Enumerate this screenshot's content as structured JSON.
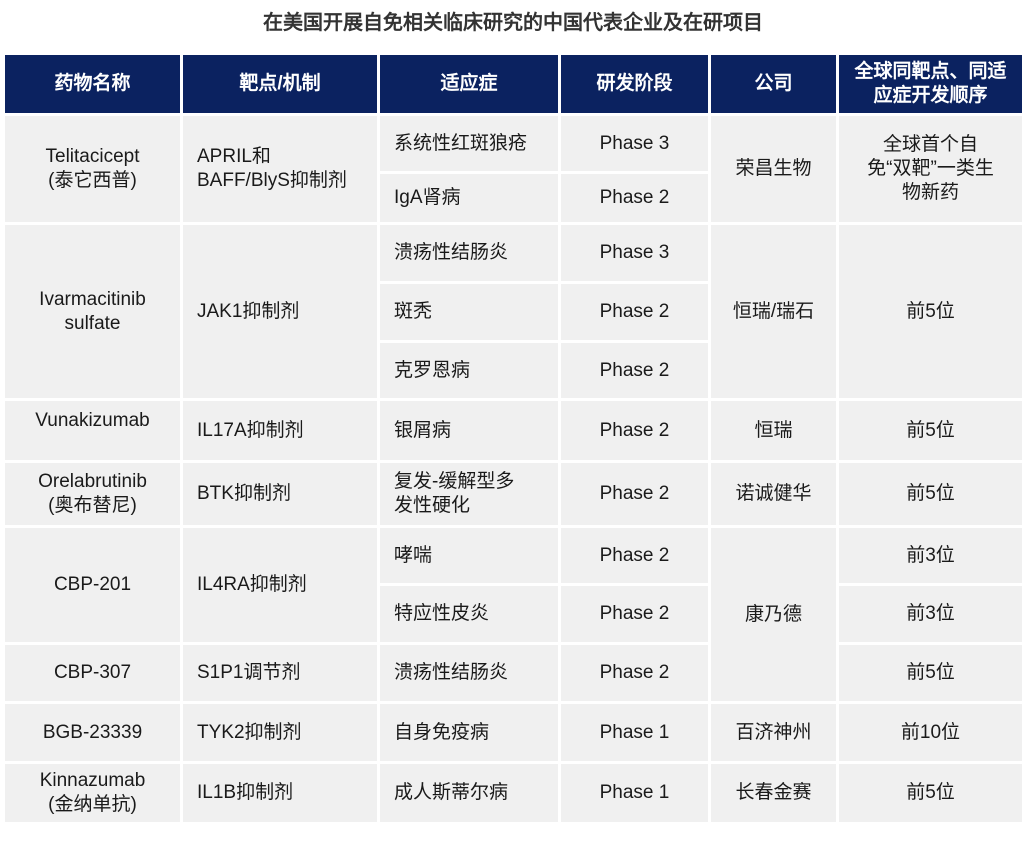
{
  "title": "在美国开展自免相关临床研究的中国代表企业及在研项目",
  "colors": {
    "header_bg": "#0b2260",
    "cell_bg": "#f0f0f0"
  },
  "headers": [
    "药物名称",
    "靶点/机制",
    "适应症",
    "研发阶段",
    "公司",
    "全球同靶点、同适应症开发顺序"
  ],
  "drugs": [
    {
      "name": "Telitacicept",
      "name_cn": "(泰它西普)",
      "target": "APRIL和BAFF/BlyS抑制剂",
      "company": "荣昌生物",
      "rank": "全球首个自免“双靶”一类生物新药",
      "indications": [
        {
          "name": "系统性红斑狼疮",
          "phase": "Phase 3"
        },
        {
          "name": "IgA肾病",
          "phase": "Phase 2"
        }
      ]
    },
    {
      "name": "Ivarmacitinib sulfate",
      "target": "JAK1抑制剂",
      "company": "恒瑞/瑞石",
      "rank": "前5位",
      "indications": [
        {
          "name": "溃疡性结肠炎",
          "phase": "Phase 3"
        },
        {
          "name": "斑秃",
          "phase": "Phase 2"
        },
        {
          "name": "克罗恩病",
          "phase": "Phase 2"
        }
      ]
    },
    {
      "name": "Vunakizumab",
      "target": "IL17A抑制剂",
      "company": "恒瑞",
      "rank": "前5位",
      "indications": [
        {
          "name": "银屑病",
          "phase": "Phase 2"
        }
      ]
    },
    {
      "name": "Orelabrutinib",
      "name_cn": "(奥布替尼)",
      "target": "BTK抑制剂",
      "company": "诺诚健华",
      "rank": "前5位",
      "indications": [
        {
          "name": "复发-缓解型多发性硬化",
          "phase": "Phase 2"
        }
      ]
    },
    {
      "name": "CBP-201",
      "target": "IL4RA抑制剂",
      "company": "康乃德",
      "indications": [
        {
          "name": "哮喘",
          "phase": "Phase 2",
          "rank": "前3位"
        },
        {
          "name": "特应性皮炎",
          "phase": "Phase 2",
          "rank": "前3位"
        }
      ]
    },
    {
      "name": "CBP-307",
      "target": "S1P1调节剂",
      "company": "康乃德",
      "rank": "前5位",
      "indications": [
        {
          "name": "溃疡性结肠炎",
          "phase": "Phase 2"
        }
      ]
    },
    {
      "name": "BGB-23339",
      "target": "TYK2抑制剂",
      "company": "百济神州",
      "rank": "前10位",
      "indications": [
        {
          "name": "自身免疫病",
          "phase": "Phase 1"
        }
      ]
    },
    {
      "name": "Kinnazumab",
      "name_cn": "(金纳单抗)",
      "target": "IL1B抑制剂",
      "company": "长春金赛",
      "rank": "前5位",
      "indications": [
        {
          "name": "成人斯蒂尔病",
          "phase": "Phase 1"
        }
      ]
    }
  ]
}
